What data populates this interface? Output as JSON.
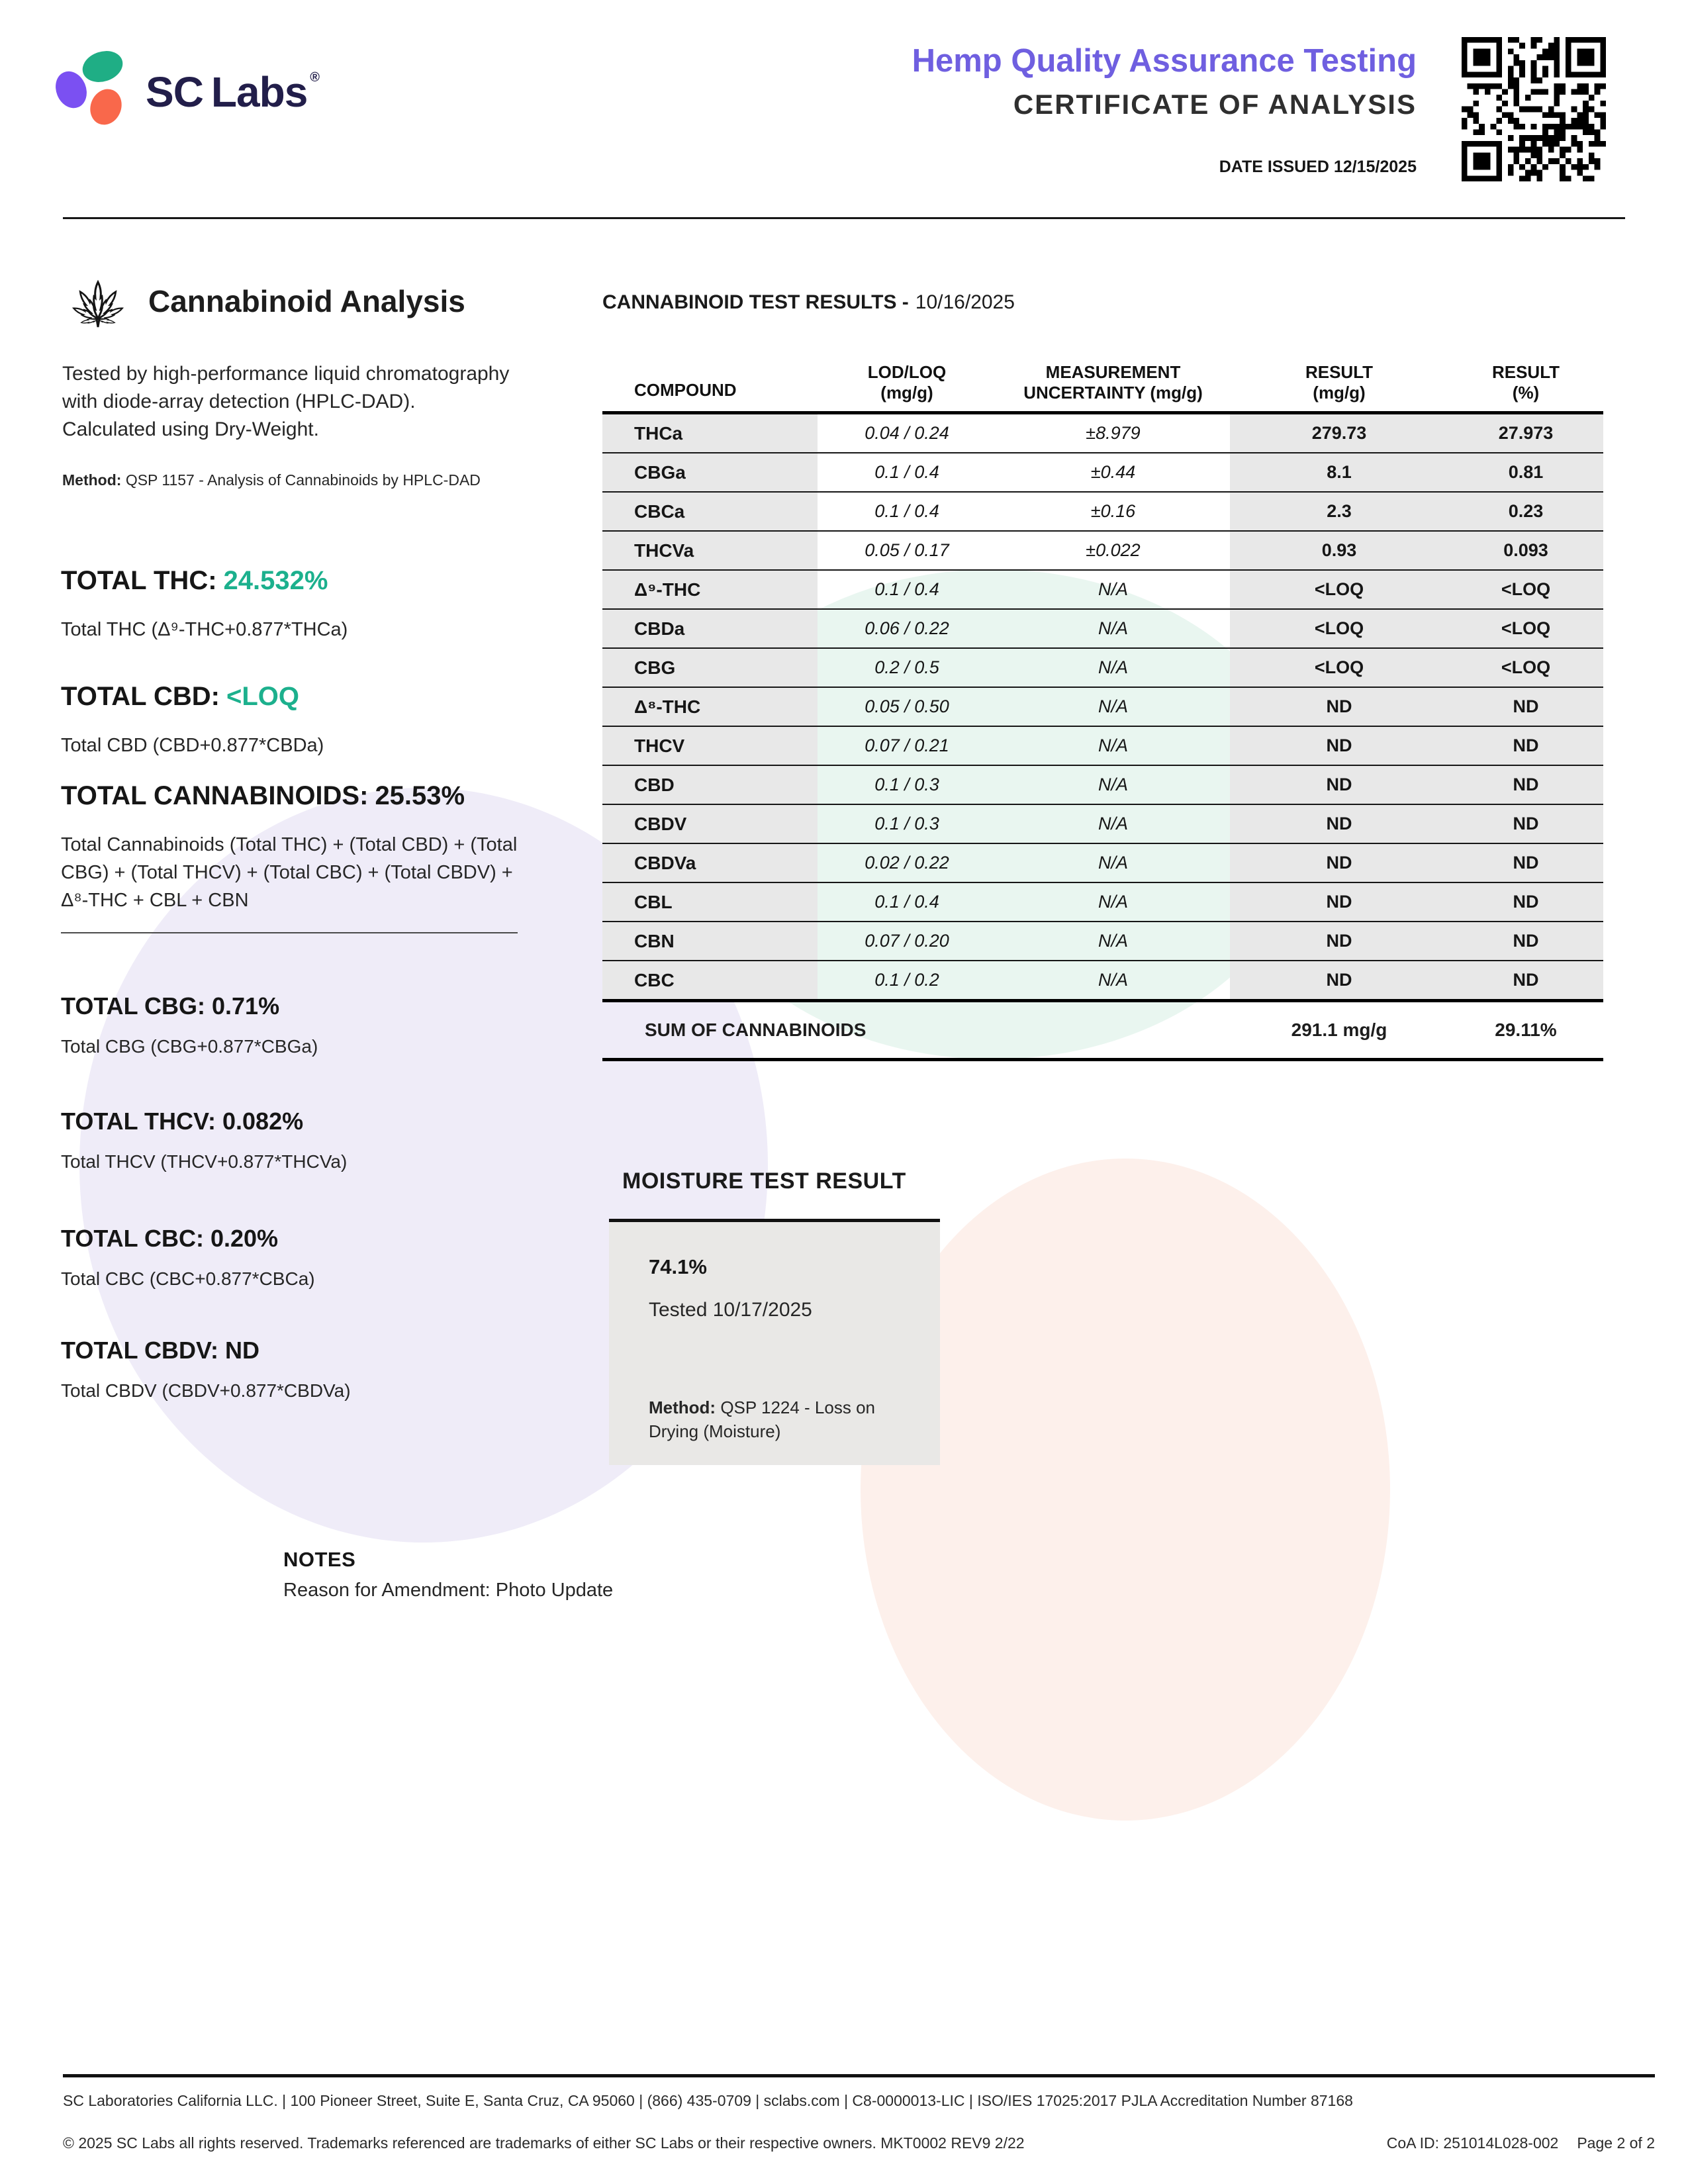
{
  "header": {
    "brand": {
      "sc": "SC",
      "labs": "Labs",
      "registered": "®"
    },
    "title": "Hemp Quality Assurance Testing",
    "subtitle": "CERTIFICATE OF ANALYSIS",
    "date_issued": "DATE ISSUED 12/15/2025"
  },
  "colors": {
    "accent_purple": "#6f5fe0",
    "accent_green": "#1cb08d",
    "brand_navy": "#221e4a",
    "logo_green": "#1fae85",
    "logo_purple": "#7b50f2",
    "logo_orange": "#f9684b",
    "table_gray": "#e8e8e8",
    "moisture_box_gray": "#e9e8e6",
    "blob_lavender": "#efecf8",
    "blob_mint": "#e9f6f0",
    "blob_pink": "#fdf0eb"
  },
  "cannabinoid_analysis": {
    "heading": "Cannabinoid Analysis",
    "description": "Tested by high-performance liquid chromatography with diode-array detection (HPLC-DAD). Calculated using Dry-Weight.",
    "method_label": "Method:",
    "method_text": "QSP 1157 - Analysis of Cannabinoids by HPLC-DAD",
    "totals_primary": [
      {
        "label": "TOTAL THC:",
        "value": "24.532%",
        "value_class": "green",
        "formula": "Total THC (Δ⁹-THC+0.877*THCa)"
      },
      {
        "label": "TOTAL CBD:",
        "value": "<LOQ",
        "value_class": "green",
        "formula": "Total CBD (CBD+0.877*CBDa)"
      },
      {
        "label": "TOTAL CANNABINOIDS:",
        "value": "25.53%",
        "value_class": "dark",
        "formula": "Total Cannabinoids (Total THC) + (Total CBD) + (Total CBG) + (Total THCV) + (Total CBC) + (Total CBDV) + Δ⁸-THC + CBL  + CBN"
      }
    ],
    "totals_secondary": [
      {
        "label": "TOTAL CBG:",
        "value": "0.71%",
        "formula": "Total CBG (CBG+0.877*CBGa)"
      },
      {
        "label": "TOTAL THCV:",
        "value": "0.082%",
        "formula": "Total THCV (THCV+0.877*THCVa)"
      },
      {
        "label": "TOTAL CBC:",
        "value": "0.20%",
        "formula": "Total CBC (CBC+0.877*CBCa)"
      },
      {
        "label": "TOTAL CBDV:",
        "value": "ND",
        "formula": "Total CBDV (CBDV+0.877*CBDVa)"
      }
    ]
  },
  "results_table": {
    "title_bold": "CANNABINOID TEST RESULTS -",
    "title_date": "10/16/2025",
    "columns": [
      {
        "l1": "COMPOUND",
        "l2": ""
      },
      {
        "l1": "LOD/LOQ",
        "l2": "(mg/g)"
      },
      {
        "l1": "MEASUREMENT",
        "l2": "UNCERTAINTY (mg/g)"
      },
      {
        "l1": "RESULT",
        "l2": "(mg/g)"
      },
      {
        "l1": "RESULT",
        "l2": "(%)"
      }
    ],
    "rows": [
      {
        "compound": "THCa",
        "lod": "0.04 / 0.24",
        "mu": "±8.979",
        "mg": "279.73",
        "pct": "27.973"
      },
      {
        "compound": "CBGa",
        "lod": "0.1 / 0.4",
        "mu": "±0.44",
        "mg": "8.1",
        "pct": "0.81"
      },
      {
        "compound": "CBCa",
        "lod": "0.1 / 0.4",
        "mu": "±0.16",
        "mg": "2.3",
        "pct": "0.23"
      },
      {
        "compound": "THCVa",
        "lod": "0.05 / 0.17",
        "mu": "±0.022",
        "mg": "0.93",
        "pct": "0.093"
      },
      {
        "compound": "Δ⁹-THC",
        "lod": "0.1 / 0.4",
        "mu": "N/A",
        "mg": "<LOQ",
        "pct": "<LOQ"
      },
      {
        "compound": "CBDa",
        "lod": "0.06 / 0.22",
        "mu": "N/A",
        "mg": "<LOQ",
        "pct": "<LOQ"
      },
      {
        "compound": "CBG",
        "lod": "0.2 / 0.5",
        "mu": "N/A",
        "mg": "<LOQ",
        "pct": "<LOQ"
      },
      {
        "compound": "Δ⁸-THC",
        "lod": "0.05 / 0.50",
        "mu": "N/A",
        "mg": "ND",
        "pct": "ND"
      },
      {
        "compound": "THCV",
        "lod": "0.07 / 0.21",
        "mu": "N/A",
        "mg": "ND",
        "pct": "ND"
      },
      {
        "compound": "CBD",
        "lod": "0.1 / 0.3",
        "mu": "N/A",
        "mg": "ND",
        "pct": "ND"
      },
      {
        "compound": "CBDV",
        "lod": "0.1 / 0.3",
        "mu": "N/A",
        "mg": "ND",
        "pct": "ND"
      },
      {
        "compound": "CBDVa",
        "lod": "0.02 / 0.22",
        "mu": "N/A",
        "mg": "ND",
        "pct": "ND"
      },
      {
        "compound": "CBL",
        "lod": "0.1 / 0.4",
        "mu": "N/A",
        "mg": "ND",
        "pct": "ND"
      },
      {
        "compound": "CBN",
        "lod": "0.07 / 0.20",
        "mu": "N/A",
        "mg": "ND",
        "pct": "ND"
      },
      {
        "compound": "CBC",
        "lod": "0.1 / 0.2",
        "mu": "N/A",
        "mg": "ND",
        "pct": "ND"
      }
    ],
    "sum_label": "SUM OF CANNABINOIDS",
    "sum_mg": "291.1 mg/g",
    "sum_pct": "29.11%"
  },
  "moisture": {
    "heading": "MOISTURE TEST RESULT",
    "value": "74.1%",
    "tested": "Tested 10/17/2025",
    "method_label": "Method:",
    "method_text": "QSP 1224 - Loss on Drying (Moisture)"
  },
  "notes": {
    "heading": "NOTES",
    "text": "Reason for Amendment: Photo Update"
  },
  "footer": {
    "line1": "SC Laboratories California LLC. | 100 Pioneer Street, Suite E, Santa Cruz, CA 95060 | (866) 435-0709 | sclabs.com | C8-0000013-LIC | ISO/IES 17025:2017 PJLA Accreditation Number 87168",
    "line2": "© 2025 SC Labs all rights reserved. Trademarks referenced are trademarks of either SC Labs or their respective owners. MKT0002 REV9 2/22",
    "coa_id": "CoA ID: 251014L028-002",
    "page": "Page 2 of 2"
  }
}
